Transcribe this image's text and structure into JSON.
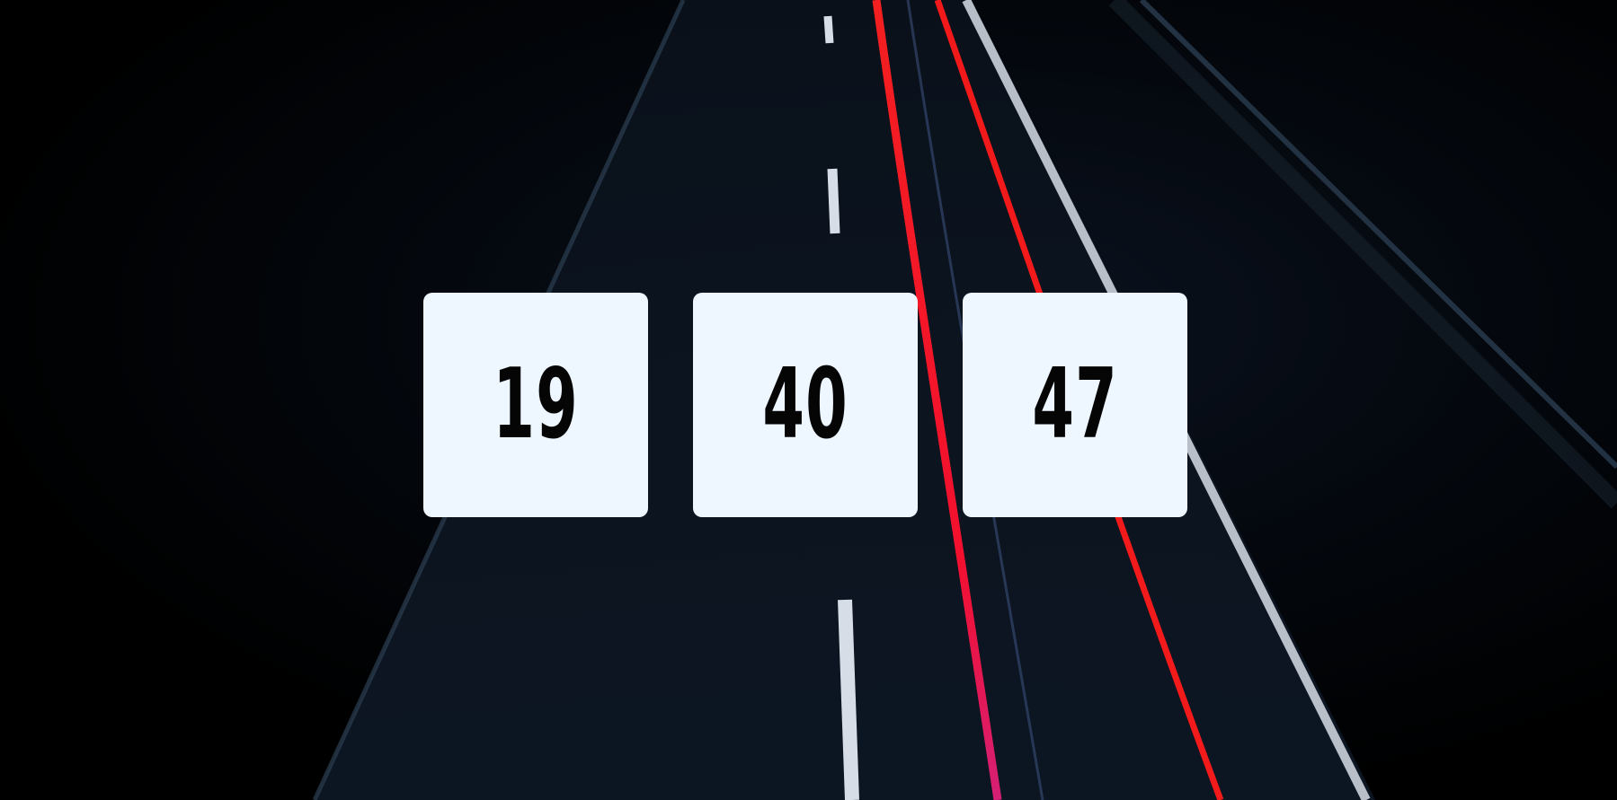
{
  "clock": {
    "hours": "19",
    "minutes": "40",
    "seconds": "47"
  },
  "colors": {
    "tile_background": "#eef6ff",
    "digit_color": "#050505",
    "light_trail": "#ff1a1a",
    "lane_marking": "#d7dde6"
  }
}
